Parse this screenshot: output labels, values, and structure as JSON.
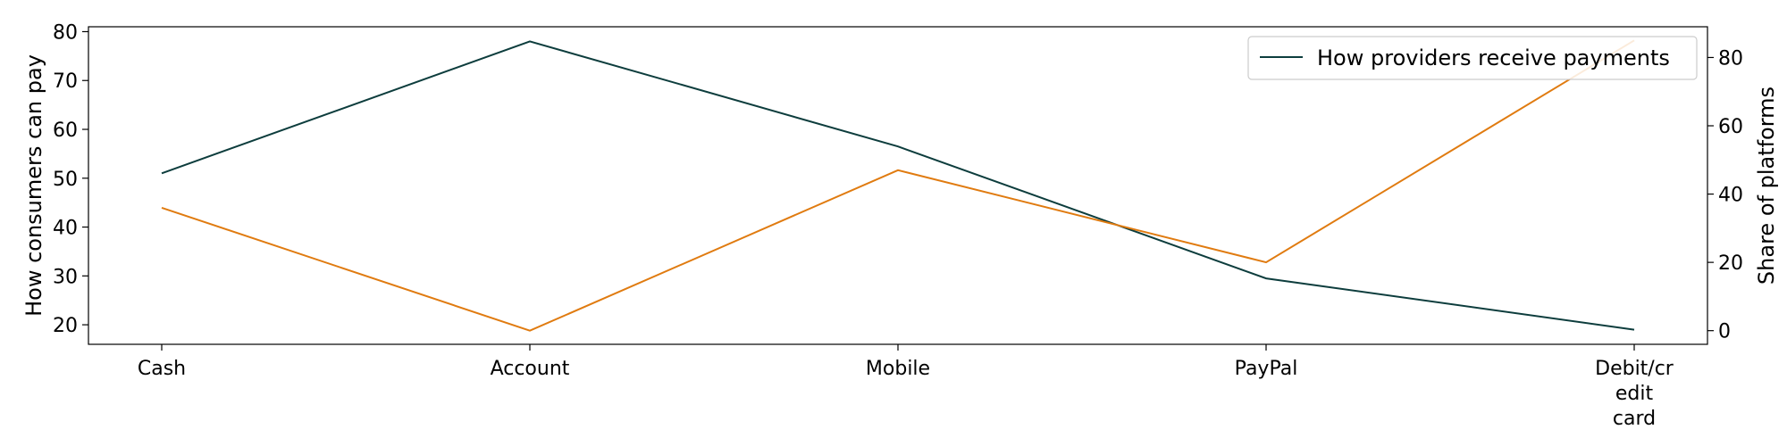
{
  "chart_data": {
    "type": "line",
    "categories": [
      "Cash",
      "Account",
      "Mobile",
      "PayPal",
      "Debit/credit card"
    ],
    "category_tick_lines": [
      [
        "Cash"
      ],
      [
        "Account"
      ],
      [
        "Mobile"
      ],
      [
        "PayPal"
      ],
      [
        "Debit/cr",
        "edit",
        "card"
      ]
    ],
    "series": [
      {
        "name": "How providers receive payments",
        "axis": "left",
        "color": "#0d3d3d",
        "values": [
          51,
          78,
          56.5,
          29.5,
          19
        ]
      },
      {
        "axis": "right",
        "color": "#e07b10",
        "values": [
          36,
          0,
          47,
          20,
          85
        ]
      }
    ],
    "y_left": {
      "label": "How consumers can pay",
      "lim": [
        16,
        81
      ],
      "ticks": [
        20,
        30,
        40,
        50,
        60,
        70,
        80
      ]
    },
    "y_right": {
      "label": "Share of platforms",
      "lim": [
        -4,
        89
      ],
      "ticks": [
        0,
        20,
        40,
        60,
        80
      ]
    },
    "legend": {
      "position": "top-right",
      "entries": [
        "How providers receive payments"
      ]
    },
    "grid": false
  }
}
